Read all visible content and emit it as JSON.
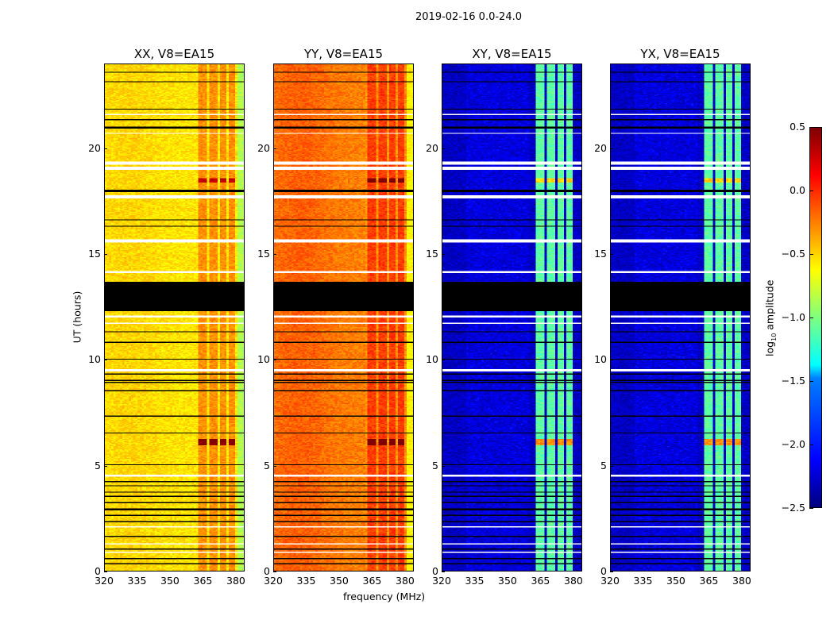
{
  "chart_data": {
    "type": "heatmap",
    "title": "2019-02-16 0.0-24.0",
    "xlabel": "frequency (MHz)",
    "ylabel": "UT (hours)",
    "xlim": [
      320,
      384
    ],
    "ylim": [
      0,
      24
    ],
    "xticks": [
      "320",
      "335",
      "350",
      "365",
      "380"
    ],
    "yticks": [
      "0",
      "5",
      "10",
      "15",
      "20"
    ],
    "colorbar": {
      "label": "log10 amplitude",
      "label_main": "log",
      "label_sub": "10",
      "label_rest": " amplitude",
      "range": [
        -2.5,
        0.5
      ],
      "ticks": [
        "0.5",
        "0.0",
        "−0.5",
        "−1.0",
        "−1.5",
        "−2.0",
        "−2.5"
      ],
      "colormap": "jet"
    },
    "panels": [
      {
        "title": "XX, V8=EA15",
        "base": -0.55,
        "band_level": -0.3,
        "left_level": -0.5
      },
      {
        "title": "YY, V8=EA15",
        "base": -0.3,
        "band_level": -0.05,
        "left_level": -0.2
      },
      {
        "title": "XY, V8=EA15",
        "base": -2.3,
        "band_level": -1.1,
        "left_level": -2.3
      },
      {
        "title": "YX, V8=EA15",
        "base": -2.3,
        "band_level": -1.1,
        "left_level": -2.3
      }
    ],
    "rfi_bands_mhz": [
      [
        363,
        367
      ],
      [
        368,
        372
      ],
      [
        373,
        376
      ],
      [
        377,
        380
      ]
    ],
    "flagged_black_hours": [
      [
        12.3,
        13.7
      ]
    ],
    "flagged_white_hours": [
      [
        19.0,
        19.15
      ],
      [
        19.25,
        19.4
      ],
      [
        17.65,
        17.8
      ],
      [
        15.55,
        15.7
      ],
      [
        14.1,
        14.2
      ],
      [
        12.0,
        12.1
      ],
      [
        11.7,
        11.75
      ],
      [
        9.45,
        9.55
      ],
      [
        4.45,
        4.55
      ],
      [
        2.05,
        2.1
      ],
      [
        1.25,
        1.3
      ],
      [
        0.85,
        0.9
      ],
      [
        20.7,
        20.75
      ],
      [
        21.6,
        21.65
      ]
    ],
    "flagged_line_hours": [
      0.3,
      0.55,
      1.0,
      1.6,
      2.3,
      2.6,
      2.9,
      3.2,
      3.5,
      3.7,
      4.0,
      4.2,
      5.0,
      5.4,
      5.6,
      6.5,
      7.3,
      8.2,
      8.5,
      8.9,
      9.0,
      9.3,
      9.7,
      10.0,
      10.8,
      11.3,
      15.0,
      16.3,
      16.6,
      18.0,
      21.0,
      21.4,
      21.9,
      23.2,
      23.6
    ]
  }
}
